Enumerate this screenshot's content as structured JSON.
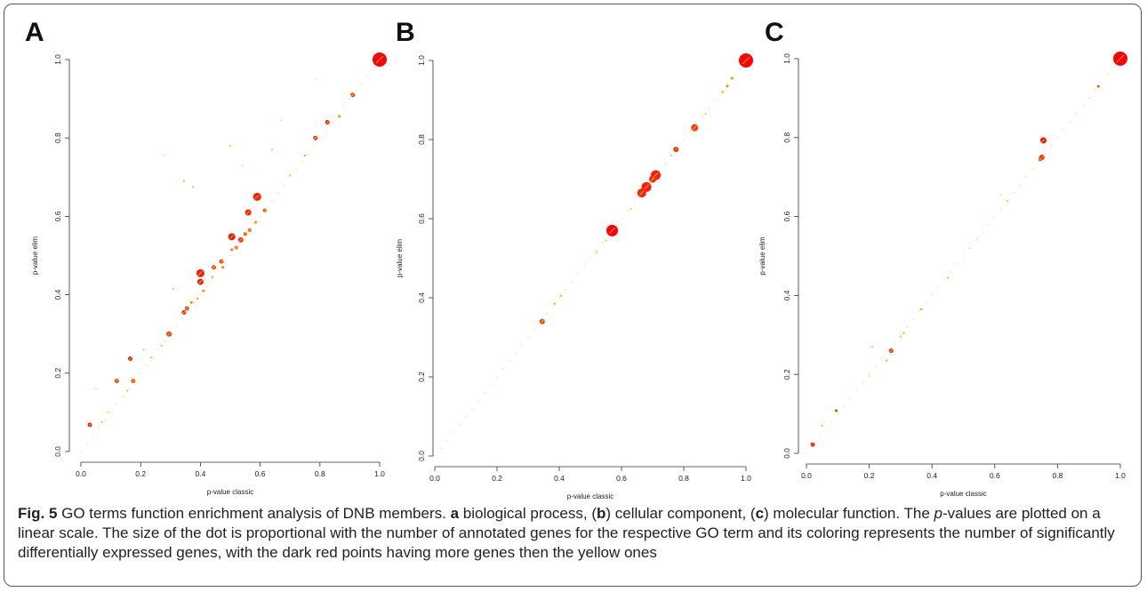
{
  "chart_data": [
    {
      "type": "scatter",
      "panel_label": "A",
      "title": "",
      "xlabel": "p-value classic",
      "ylabel": "p-value elim",
      "xlim": [
        0,
        1
      ],
      "ylim": [
        0,
        1
      ],
      "xticks": [
        "0.0",
        "0.2",
        "0.4",
        "0.6",
        "0.8",
        "1.0"
      ],
      "yticks": [
        "0.0",
        "0.2",
        "0.4",
        "0.6",
        "0.8",
        "1.0"
      ],
      "grid": false,
      "points": [
        {
          "x": 1.0,
          "y": 1.0,
          "size": 8,
          "color": "#ff0000"
        },
        {
          "x": 0.91,
          "y": 0.91,
          "size": 2.5,
          "color": "#ee4400"
        },
        {
          "x": 0.865,
          "y": 0.855,
          "size": 1.5,
          "color": "#ff9900"
        },
        {
          "x": 0.825,
          "y": 0.84,
          "size": 2.5,
          "color": "#ee2200"
        },
        {
          "x": 0.785,
          "y": 0.8,
          "size": 2.5,
          "color": "#ee3300"
        },
        {
          "x": 0.75,
          "y": 0.755,
          "size": 1.2,
          "color": "#ffaa00"
        },
        {
          "x": 0.7,
          "y": 0.705,
          "size": 1,
          "color": "#ffbb00"
        },
        {
          "x": 0.64,
          "y": 0.77,
          "size": 1,
          "color": "#ffbb00"
        },
        {
          "x": 0.67,
          "y": 0.845,
          "size": 0.8,
          "color": "#ffcc33"
        },
        {
          "x": 0.5,
          "y": 0.78,
          "size": 1,
          "color": "#ffbb00"
        },
        {
          "x": 0.54,
          "y": 0.73,
          "size": 0.8,
          "color": "#ffcc33"
        },
        {
          "x": 0.28,
          "y": 0.755,
          "size": 0.8,
          "color": "#ffcc33"
        },
        {
          "x": 0.345,
          "y": 0.69,
          "size": 1,
          "color": "#ffaa00"
        },
        {
          "x": 0.375,
          "y": 0.675,
          "size": 1,
          "color": "#ffaa00"
        },
        {
          "x": 0.59,
          "y": 0.65,
          "size": 4.5,
          "color": "#ff1a00"
        },
        {
          "x": 0.615,
          "y": 0.615,
          "size": 2,
          "color": "#ee4400"
        },
        {
          "x": 0.56,
          "y": 0.61,
          "size": 3.5,
          "color": "#ff2200"
        },
        {
          "x": 0.585,
          "y": 0.585,
          "size": 1.5,
          "color": "#ff8800"
        },
        {
          "x": 0.565,
          "y": 0.565,
          "size": 2,
          "color": "#ee5500"
        },
        {
          "x": 0.505,
          "y": 0.548,
          "size": 4,
          "color": "#ee1a00"
        },
        {
          "x": 0.55,
          "y": 0.555,
          "size": 2,
          "color": "#ee4400"
        },
        {
          "x": 0.535,
          "y": 0.54,
          "size": 3,
          "color": "#ee3300"
        },
        {
          "x": 0.52,
          "y": 0.52,
          "size": 2,
          "color": "#ff6600"
        },
        {
          "x": 0.505,
          "y": 0.515,
          "size": 1.5,
          "color": "#ff7700"
        },
        {
          "x": 0.47,
          "y": 0.485,
          "size": 2.5,
          "color": "#ee4400"
        },
        {
          "x": 0.475,
          "y": 0.47,
          "size": 1.5,
          "color": "#ff7700"
        },
        {
          "x": 0.445,
          "y": 0.47,
          "size": 2.5,
          "color": "#ee4400"
        },
        {
          "x": 0.44,
          "y": 0.445,
          "size": 1.2,
          "color": "#ffaa00"
        },
        {
          "x": 0.4,
          "y": 0.455,
          "size": 4.5,
          "color": "#ff1a00"
        },
        {
          "x": 0.4,
          "y": 0.433,
          "size": 3.5,
          "color": "#ee2200"
        },
        {
          "x": 0.41,
          "y": 0.41,
          "size": 1.5,
          "color": "#ff8800"
        },
        {
          "x": 0.39,
          "y": 0.39,
          "size": 1.2,
          "color": "#ffaa00"
        },
        {
          "x": 0.37,
          "y": 0.38,
          "size": 1.5,
          "color": "#ff8800"
        },
        {
          "x": 0.355,
          "y": 0.365,
          "size": 2.5,
          "color": "#ee4400"
        },
        {
          "x": 0.345,
          "y": 0.355,
          "size": 2.5,
          "color": "#ee3300"
        },
        {
          "x": 0.31,
          "y": 0.415,
          "size": 1,
          "color": "#ffbb00"
        },
        {
          "x": 0.295,
          "y": 0.3,
          "size": 3,
          "color": "#ee4400"
        },
        {
          "x": 0.27,
          "y": 0.27,
          "size": 1,
          "color": "#ffbb00"
        },
        {
          "x": 0.235,
          "y": 0.24,
          "size": 1,
          "color": "#ffbb00"
        },
        {
          "x": 0.21,
          "y": 0.26,
          "size": 1,
          "color": "#ffbb00"
        },
        {
          "x": 0.165,
          "y": 0.237,
          "size": 2.5,
          "color": "#ee2200"
        },
        {
          "x": 0.175,
          "y": 0.18,
          "size": 2.5,
          "color": "#ee5500"
        },
        {
          "x": 0.12,
          "y": 0.18,
          "size": 2.5,
          "color": "#ee4400"
        },
        {
          "x": 0.155,
          "y": 0.155,
          "size": 1,
          "color": "#ffbb00"
        },
        {
          "x": 0.09,
          "y": 0.1,
          "size": 1,
          "color": "#ffcc33"
        },
        {
          "x": 0.07,
          "y": 0.075,
          "size": 1,
          "color": "#ffaa00"
        },
        {
          "x": 0.05,
          "y": 0.16,
          "size": 0.8,
          "color": "#ffcc33"
        },
        {
          "x": 0.03,
          "y": 0.068,
          "size": 2.5,
          "color": "#ee2200"
        },
        {
          "x": 0.79,
          "y": 0.95,
          "size": 0.8,
          "color": "#ffdd55"
        }
      ]
    },
    {
      "type": "scatter",
      "panel_label": "B",
      "title": "",
      "xlabel": "p-value classic",
      "ylabel": "p-value elim",
      "xlim": [
        0,
        1
      ],
      "ylim": [
        0,
        1
      ],
      "xticks": [
        "0.0",
        "0.2",
        "0.4",
        "0.6",
        "0.8",
        "1.0"
      ],
      "yticks": [
        "0.0",
        "0.2",
        "0.4",
        "0.6",
        "0.8",
        "1.0"
      ],
      "grid": false,
      "points": [
        {
          "x": 1.0,
          "y": 1.0,
          "size": 8,
          "color": "#ff0000"
        },
        {
          "x": 0.955,
          "y": 0.955,
          "size": 1.5,
          "color": "#ff8800"
        },
        {
          "x": 0.94,
          "y": 0.935,
          "size": 1.5,
          "color": "#ff8800"
        },
        {
          "x": 0.925,
          "y": 0.92,
          "size": 1.2,
          "color": "#ffaa00"
        },
        {
          "x": 0.87,
          "y": 0.865,
          "size": 1,
          "color": "#ffbb00"
        },
        {
          "x": 0.835,
          "y": 0.83,
          "size": 4,
          "color": "#ee4400"
        },
        {
          "x": 0.775,
          "y": 0.775,
          "size": 3,
          "color": "#ee3300"
        },
        {
          "x": 0.76,
          "y": 0.76,
          "size": 1,
          "color": "#ffbb00"
        },
        {
          "x": 0.71,
          "y": 0.71,
          "size": 5.5,
          "color": "#ff1a00"
        },
        {
          "x": 0.7,
          "y": 0.7,
          "size": 4,
          "color": "#ee3300"
        },
        {
          "x": 0.68,
          "y": 0.68,
          "size": 5.5,
          "color": "#ff1a00"
        },
        {
          "x": 0.665,
          "y": 0.665,
          "size": 5,
          "color": "#ff2200"
        },
        {
          "x": 0.63,
          "y": 0.625,
          "size": 1,
          "color": "#ffbb00"
        },
        {
          "x": 0.57,
          "y": 0.57,
          "size": 6.5,
          "color": "#ff0000"
        },
        {
          "x": 0.55,
          "y": 0.545,
          "size": 1,
          "color": "#ffbb00"
        },
        {
          "x": 0.52,
          "y": 0.515,
          "size": 1,
          "color": "#ffbb00"
        },
        {
          "x": 0.405,
          "y": 0.405,
          "size": 1.2,
          "color": "#ffaa00"
        },
        {
          "x": 0.385,
          "y": 0.385,
          "size": 1.2,
          "color": "#ffaa00"
        },
        {
          "x": 0.345,
          "y": 0.34,
          "size": 3,
          "color": "#ee4400"
        }
      ]
    },
    {
      "type": "scatter",
      "panel_label": "C",
      "title": "",
      "xlabel": "p-value classic",
      "ylabel": "p-value elim",
      "xlim": [
        0,
        1
      ],
      "ylim": [
        0,
        1
      ],
      "xticks": [
        "0.0",
        "0.2",
        "0.4",
        "0.6",
        "0.8",
        "1.0"
      ],
      "yticks": [
        "0.0",
        "0.2",
        "0.4",
        "0.6",
        "0.8",
        "1.0"
      ],
      "grid": false,
      "points": [
        {
          "x": 1.0,
          "y": 1.0,
          "size": 8,
          "color": "#ff0000"
        },
        {
          "x": 0.93,
          "y": 0.93,
          "size": 1.5,
          "color": "#ee5500"
        },
        {
          "x": 0.755,
          "y": 0.793,
          "size": 3.5,
          "color": "#ee1a00"
        },
        {
          "x": 0.75,
          "y": 0.75,
          "size": 3,
          "color": "#ee3300"
        },
        {
          "x": 0.745,
          "y": 0.745,
          "size": 2,
          "color": "#ee4400"
        },
        {
          "x": 0.64,
          "y": 0.64,
          "size": 1,
          "color": "#ffbb00"
        },
        {
          "x": 0.62,
          "y": 0.655,
          "size": 0.8,
          "color": "#ffcc33"
        },
        {
          "x": 0.545,
          "y": 0.545,
          "size": 0.8,
          "color": "#ffcc33"
        },
        {
          "x": 0.52,
          "y": 0.52,
          "size": 0.8,
          "color": "#ffcc33"
        },
        {
          "x": 0.45,
          "y": 0.445,
          "size": 1,
          "color": "#ffaa00"
        },
        {
          "x": 0.365,
          "y": 0.365,
          "size": 1.2,
          "color": "#ffaa00"
        },
        {
          "x": 0.31,
          "y": 0.305,
          "size": 1.2,
          "color": "#ffaa00"
        },
        {
          "x": 0.3,
          "y": 0.295,
          "size": 1,
          "color": "#ffbb00"
        },
        {
          "x": 0.27,
          "y": 0.26,
          "size": 2.5,
          "color": "#ee3300"
        },
        {
          "x": 0.255,
          "y": 0.235,
          "size": 1,
          "color": "#ff8800"
        },
        {
          "x": 0.21,
          "y": 0.27,
          "size": 1,
          "color": "#ffbb00"
        },
        {
          "x": 0.2,
          "y": 0.195,
          "size": 0.8,
          "color": "#ffcc33"
        },
        {
          "x": 0.095,
          "y": 0.108,
          "size": 1.5,
          "color": "#ee4400"
        },
        {
          "x": 0.05,
          "y": 0.07,
          "size": 1,
          "color": "#ffaa00"
        },
        {
          "x": 0.02,
          "y": 0.022,
          "size": 2.5,
          "color": "#ee1a00"
        }
      ]
    }
  ],
  "caption": {
    "fig_label": "Fig. 5",
    "text_1": " GO terms function enrichment analysis of DNB members. ",
    "a": "a",
    "text_2": " biological process, (",
    "b": "b",
    "text_3": ") cellular component, (",
    "c": "c",
    "text_4": ") molecular function. The ",
    "p": "p",
    "text_5": "-values are plotted on a linear scale. The size of the dot is proportional with the number of annotated genes for the respective GO term and its coloring represents the number of significantly differentially expressed genes, with the dark red points having more genes then the yellow ones"
  }
}
